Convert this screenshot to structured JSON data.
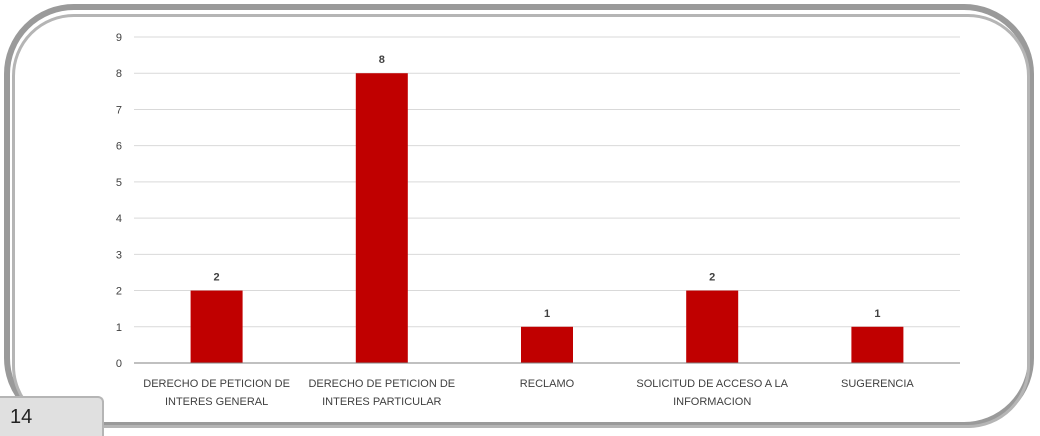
{
  "chart_data": {
    "type": "bar",
    "categories": [
      [
        "DERECHO DE PETICION DE",
        "INTERES GENERAL"
      ],
      [
        "DERECHO DE PETICION DE",
        "INTERES PARTICULAR"
      ],
      [
        "RECLAMO"
      ],
      [
        "SOLICITUD DE ACCESO A LA",
        "INFORMACION"
      ],
      [
        "SUGERENCIA"
      ]
    ],
    "values": [
      2,
      8,
      1,
      2,
      1
    ],
    "title": "",
    "xlabel": "",
    "ylabel": "",
    "ylim": [
      0,
      9
    ],
    "yticks": [
      0,
      1,
      2,
      3,
      4,
      5,
      6,
      7,
      8,
      9
    ],
    "grid": true,
    "bar_color": "#c00000",
    "data_labels": true
  },
  "page": {
    "number": "14"
  }
}
